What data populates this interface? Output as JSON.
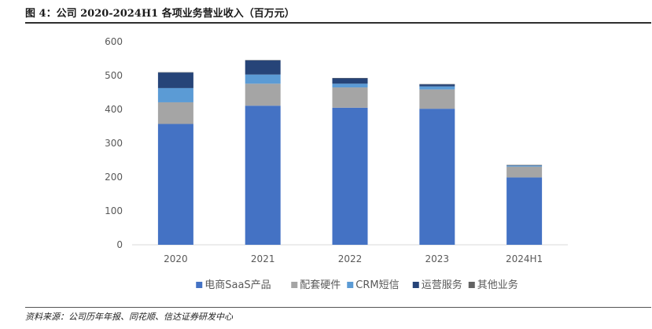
{
  "header": {
    "title": "图 4：公司 2020-2024H1 各项业务营业收入（百万元）"
  },
  "footer": {
    "source": "资料来源：公司历年年报、同花顺、信达证券研发中心"
  },
  "chart_data": {
    "type": "bar",
    "stacked": true,
    "categories": [
      "2020",
      "2021",
      "2022",
      "2023",
      "2024H1"
    ],
    "series": [
      {
        "name": "电商SaaS产品",
        "color": "#4472c4",
        "values": [
          357,
          411,
          405,
          402,
          199
        ]
      },
      {
        "name": "配套硬件",
        "color": "#a5a5a5",
        "values": [
          64,
          65,
          60,
          57,
          32
        ]
      },
      {
        "name": "CRM短信",
        "color": "#5b9bd5",
        "values": [
          42,
          27,
          11,
          9,
          3
        ]
      },
      {
        "name": "运营服务",
        "color": "#264478",
        "values": [
          46,
          42,
          16,
          6,
          1
        ]
      },
      {
        "name": "其他业务",
        "color": "#636363",
        "values": [
          1,
          1,
          1,
          1,
          1
        ]
      }
    ],
    "ylim": [
      0,
      600
    ],
    "yticks": [
      0,
      100,
      200,
      300,
      400,
      500,
      600
    ],
    "grid": false,
    "legend": "bottom"
  }
}
